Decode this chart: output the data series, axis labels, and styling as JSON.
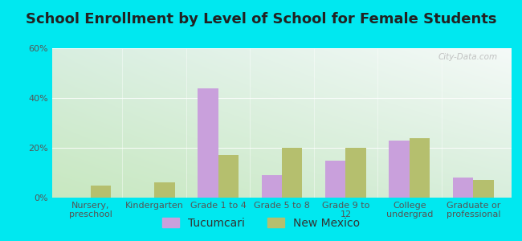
{
  "title": "School Enrollment by Level of School for Female Students",
  "categories": [
    "Nursery,\npreschool",
    "Kindergarten",
    "Grade 1 to 4",
    "Grade 5 to 8",
    "Grade 9 to\n12",
    "College\nundergrad",
    "Graduate or\nprofessional"
  ],
  "tucumcari": [
    0,
    0,
    44,
    9,
    15,
    23,
    8
  ],
  "new_mexico": [
    5,
    6,
    17,
    20,
    20,
    24,
    7
  ],
  "tucumcari_color": "#c9a0dc",
  "new_mexico_color": "#b5bf6e",
  "background_color": "#00e8f0",
  "plot_bg_topleft": "#d6efd6",
  "plot_bg_topright": "#e8f4f0",
  "plot_bg_bottomleft": "#c8e8c8",
  "plot_bg_bottomright": "#f0f8f5",
  "ylim": [
    0,
    60
  ],
  "yticks": [
    0,
    20,
    40,
    60
  ],
  "ytick_labels": [
    "0%",
    "20%",
    "40%",
    "60%"
  ],
  "bar_width": 0.32,
  "legend_labels": [
    "Tucumcari",
    "New Mexico"
  ],
  "title_fontsize": 13,
  "tick_fontsize": 8,
  "legend_fontsize": 10,
  "watermark": "City-Data.com"
}
